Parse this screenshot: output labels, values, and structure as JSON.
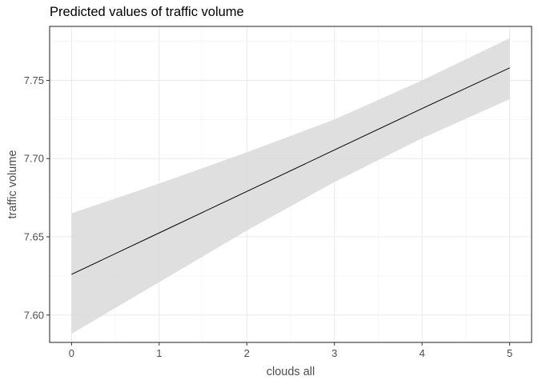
{
  "chart_data": {
    "type": "line",
    "title": "Predicted values of traffic volume",
    "xlabel": "clouds all",
    "ylabel": "traffic volume",
    "x": [
      0,
      1,
      2,
      3,
      4,
      5
    ],
    "series": [
      {
        "values": [
          7.626,
          7.6525,
          7.679,
          7.7055,
          7.732,
          7.758
        ],
        "ci_lower": [
          7.588,
          7.621,
          7.654,
          7.685,
          7.713,
          7.738
        ],
        "ci_upper": [
          7.665,
          7.684,
          7.704,
          7.725,
          7.75,
          7.777
        ]
      }
    ],
    "xlim": [
      -0.25,
      5.25
    ],
    "ylim": [
      7.5825,
      7.7845
    ],
    "x_ticks": [
      0,
      1,
      2,
      3,
      4,
      5
    ],
    "y_ticks": [
      7.6,
      7.65,
      7.7,
      7.75
    ],
    "x_tick_labels": [
      "0",
      "1",
      "2",
      "3",
      "4",
      "5"
    ],
    "y_tick_labels": [
      "7.60",
      "7.65",
      "7.70",
      "7.75"
    ],
    "grid": true,
    "colors": {
      "line": "#000000",
      "ribbon": "#d9d9d9",
      "grid_major": "#ebebeb",
      "grid_minor": "#f2f2f2",
      "panel_border": "#333333"
    }
  }
}
